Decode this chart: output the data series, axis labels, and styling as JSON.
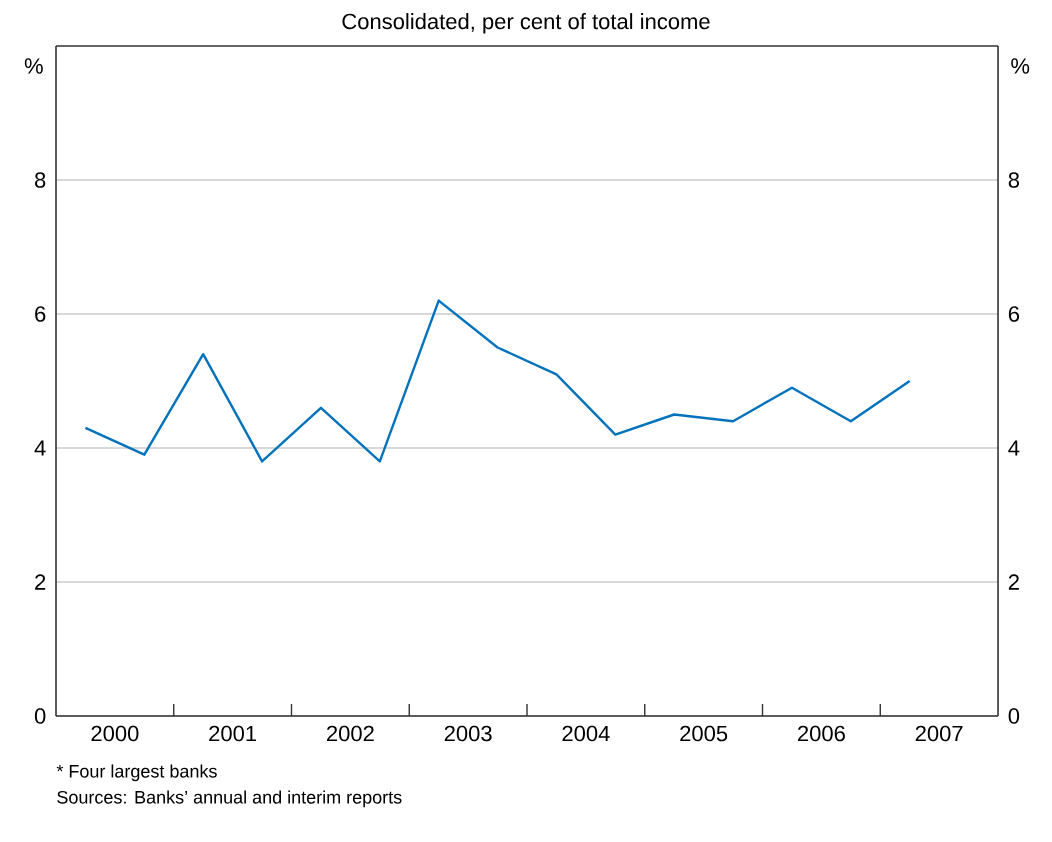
{
  "chart_data": {
    "type": "line",
    "subtitle": "Consolidated, per cent of total income",
    "ylabel": "%",
    "y2label": "%",
    "annotations": [
      "*   Four largest banks",
      "Sources: Banks’ annual and interim reports"
    ],
    "x": [
      2000.25,
      2000.75,
      2001.25,
      2001.75,
      2002.25,
      2002.75,
      2003.25,
      2003.75,
      2004.25,
      2004.75,
      2005.25,
      2005.75,
      2006.25,
      2006.75,
      2007.25
    ],
    "series": [
      {
        "color": "#0072bc",
        "values": [
          4.3,
          3.9,
          5.4,
          3.8,
          4.6,
          3.8,
          6.2,
          5.5,
          5.1,
          4.2,
          4.5,
          4.4,
          4.9,
          4.4,
          5.0
        ]
      }
    ],
    "xlim": [
      2000,
      2008
    ],
    "xticks": [
      {
        "value": 2000.5,
        "label": "2000"
      },
      {
        "value": 2001.5,
        "label": "2001"
      },
      {
        "value": 2002.5,
        "label": "2002"
      },
      {
        "value": 2003.5,
        "label": "2003"
      },
      {
        "value": 2004.5,
        "label": "2004"
      },
      {
        "value": 2005.5,
        "label": "2005"
      },
      {
        "value": 2006.5,
        "label": "2006"
      },
      {
        "value": 2007.5,
        "label": "2007"
      },
      {
        "value": 2001,
        "label": null
      },
      {
        "value": 2002,
        "label": null
      },
      {
        "value": 2003,
        "label": null
      },
      {
        "value": 2004,
        "label": null
      },
      {
        "value": 2005,
        "label": null
      },
      {
        "value": 2006,
        "label": null
      },
      {
        "value": 2007,
        "label": null
      }
    ],
    "ylim": [
      0,
      10
    ],
    "yticks": [
      0,
      2,
      4,
      6,
      8
    ],
    "y2lim": [
      0,
      10
    ],
    "y2ticks": [
      0,
      2,
      4,
      6,
      8
    ],
    "grid": "y"
  }
}
